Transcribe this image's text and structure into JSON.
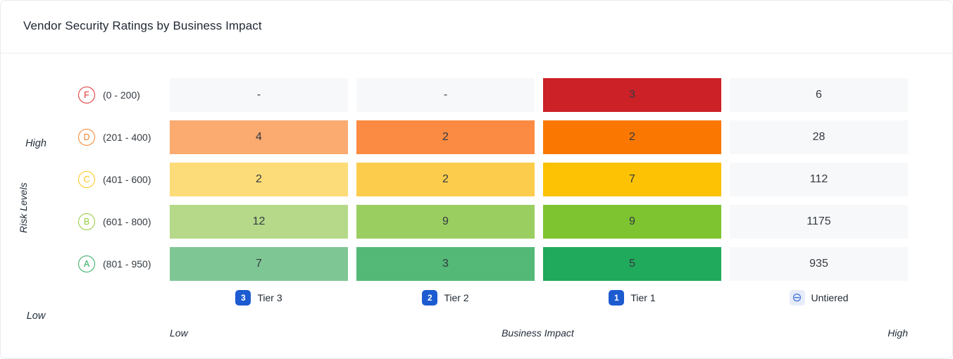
{
  "header": {
    "title": "Vendor Security Ratings by Business Impact"
  },
  "y_axis": {
    "top_label": "High",
    "bottom_label": "Low",
    "axis_title": "Risk Levels"
  },
  "x_axis": {
    "left_label": "Low",
    "center_label": "Business Impact",
    "right_label": "High"
  },
  "colors": {
    "tier_badge_blue": "#1d5bd0",
    "untiered_badge_bg": "#e7ecfa",
    "untiered_icon_blue": "#3f6fd8",
    "empty_cell_bg": "#f7f8fa",
    "cell_text": "#343a40"
  },
  "columns": [
    {
      "badge": "3",
      "badge_style": "filled",
      "label": "Tier 3"
    },
    {
      "badge": "2",
      "badge_style": "filled",
      "label": "Tier 2"
    },
    {
      "badge": "1",
      "badge_style": "filled",
      "label": "Tier 1"
    },
    {
      "badge": "⊖",
      "badge_style": "outline",
      "label": "Untiered"
    }
  ],
  "rows": [
    {
      "grade": "F",
      "range": "(0 - 200)",
      "grade_color": "#e03131",
      "cells": [
        {
          "value": "-",
          "bg": "#f7f8fa"
        },
        {
          "value": "-",
          "bg": "#f7f8fa"
        },
        {
          "value": "3",
          "bg": "#cc2127"
        },
        {
          "value": "6",
          "bg": "#f7f8fa"
        }
      ]
    },
    {
      "grade": "D",
      "range": "(201 - 400)",
      "grade_color": "#f7822a",
      "cells": [
        {
          "value": "4",
          "bg": "#fbaa70"
        },
        {
          "value": "2",
          "bg": "#fb8b43"
        },
        {
          "value": "2",
          "bg": "#fa7802"
        },
        {
          "value": "28",
          "bg": "#f7f8fa"
        }
      ]
    },
    {
      "grade": "C",
      "range": "(401 - 600)",
      "grade_color": "#fcc419",
      "cells": [
        {
          "value": "2",
          "bg": "#fcdc78"
        },
        {
          "value": "2",
          "bg": "#fccc4d"
        },
        {
          "value": "7",
          "bg": "#fcc203"
        },
        {
          "value": "112",
          "bg": "#f7f8fa"
        }
      ]
    },
    {
      "grade": "B",
      "range": "(601 - 800)",
      "grade_color": "#94c93d",
      "cells": [
        {
          "value": "12",
          "bg": "#b5d989"
        },
        {
          "value": "9",
          "bg": "#9bce61"
        },
        {
          "value": "9",
          "bg": "#7ec431"
        },
        {
          "value": "1175",
          "bg": "#f7f8fa"
        }
      ]
    },
    {
      "grade": "A",
      "range": "(801 - 950)",
      "grade_color": "#2cab5f",
      "cells": [
        {
          "value": "7",
          "bg": "#7fc695"
        },
        {
          "value": "3",
          "bg": "#54b877"
        },
        {
          "value": "5",
          "bg": "#20aa5b"
        },
        {
          "value": "935",
          "bg": "#f7f8fa"
        }
      ]
    }
  ],
  "chart_data": {
    "type": "heatmap",
    "title": "Vendor Security Ratings by Business Impact",
    "x_categories": [
      "Tier 3",
      "Tier 2",
      "Tier 1",
      "Untiered"
    ],
    "y_categories": [
      "F (0 - 200)",
      "D (201 - 400)",
      "C (401 - 600)",
      "B (601 - 800)",
      "A (801 - 950)"
    ],
    "xlabel": "Business Impact (Low to High)",
    "ylabel": "Risk Levels (High to Low)",
    "values": [
      [
        null,
        null,
        3,
        6
      ],
      [
        4,
        2,
        2,
        28
      ],
      [
        2,
        2,
        7,
        112
      ],
      [
        12,
        9,
        9,
        1175
      ],
      [
        7,
        3,
        5,
        935
      ]
    ],
    "legend_position": "bottom"
  }
}
